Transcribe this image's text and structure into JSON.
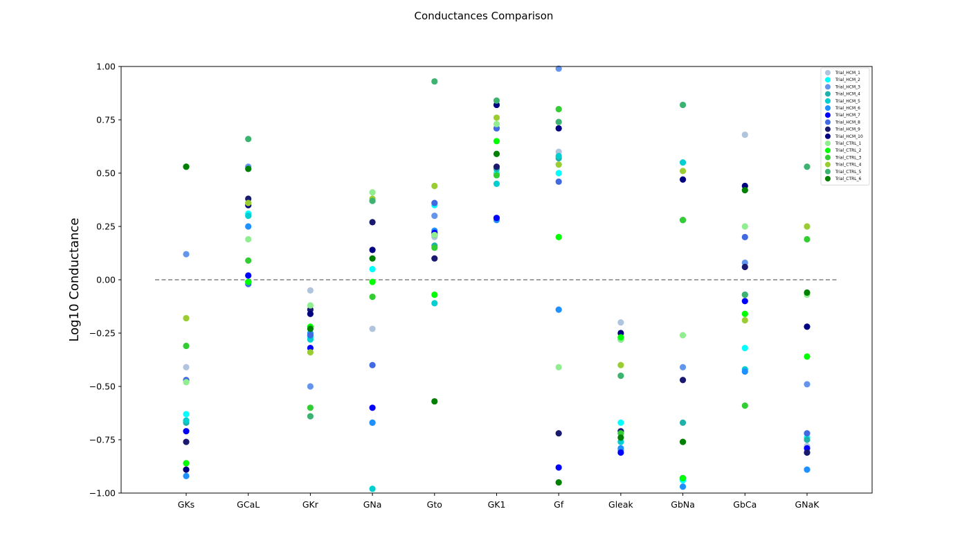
{
  "chart_data": {
    "type": "scatter",
    "title": "Conductances Comparison",
    "xlabel": "",
    "ylabel": "Log10 Conductance",
    "categories": [
      "GKs",
      "GCaL",
      "GKr",
      "GNa",
      "Gto",
      "GK1",
      "Gf",
      "Gleak",
      "GbNa",
      "GbCa",
      "GNaK"
    ],
    "ylim": [
      -1.0,
      1.0
    ],
    "yticks": [
      "−1.00",
      "−0.75",
      "−0.50",
      "−0.25",
      "0.00",
      "0.25",
      "0.50",
      "0.75",
      "1.00"
    ],
    "reference_line": {
      "y": 0.0,
      "style": "dashed",
      "color": "#808080"
    },
    "grid": false,
    "legend_position": "top-right",
    "series": [
      {
        "name": "Trial_HCM_1",
        "color": "#b0c4de",
        "values": [
          -0.41,
          0.36,
          -0.05,
          -0.23,
          0.2,
          0.52,
          0.6,
          -0.2,
          -0.76,
          0.68,
          -0.78
        ]
      },
      {
        "name": "Trial_HCM_2",
        "color": "#00ffff",
        "values": [
          -0.63,
          0.31,
          -0.27,
          0.05,
          0.35,
          0.5,
          0.5,
          -0.67,
          -0.94,
          -0.32,
          -0.74
        ]
      },
      {
        "name": "Trial_HCM_3",
        "color": "#6495ed",
        "values": [
          0.12,
          0.53,
          -0.5,
          -0.67,
          0.3,
          0.71,
          0.99,
          -0.8,
          -0.41,
          0.08,
          -0.49
        ]
      },
      {
        "name": "Trial_HCM_4",
        "color": "#20b2aa",
        "values": [
          -0.67,
          -0.01,
          -0.26,
          0.37,
          0.16,
          0.52,
          0.57,
          -0.28,
          -0.67,
          -0.07,
          -0.75
        ]
      },
      {
        "name": "Trial_HCM_5",
        "color": "#00ced1",
        "values": [
          -0.66,
          0.3,
          -0.28,
          -0.98,
          -0.11,
          0.45,
          0.58,
          -0.76,
          0.55,
          -0.42,
          -0.81
        ]
      },
      {
        "name": "Trial_HCM_6",
        "color": "#1e90ff",
        "values": [
          -0.92,
          0.25,
          -0.25,
          -0.67,
          0.23,
          0.28,
          -0.14,
          -0.79,
          -0.97,
          -0.43,
          -0.89
        ]
      },
      {
        "name": "Trial_HCM_7",
        "color": "#0000ff",
        "values": [
          -0.71,
          0.02,
          -0.32,
          -0.6,
          0.22,
          0.29,
          -0.88,
          -0.81,
          -0.93,
          -0.1,
          -0.79
        ]
      },
      {
        "name": "Trial_HCM_8",
        "color": "#4169e1",
        "values": [
          -0.47,
          -0.02,
          -0.26,
          -0.4,
          0.36,
          0.71,
          0.46,
          -0.28,
          0.28,
          0.2,
          -0.72
        ]
      },
      {
        "name": "Trial_HCM_9",
        "color": "#191970",
        "values": [
          -0.76,
          0.38,
          -0.14,
          0.27,
          0.1,
          0.53,
          -0.72,
          -0.71,
          -0.47,
          0.06,
          -0.81
        ]
      },
      {
        "name": "Trial_HCM_10",
        "color": "#000080",
        "values": [
          -0.89,
          0.35,
          -0.16,
          0.14,
          0.21,
          0.82,
          0.71,
          -0.25,
          0.47,
          0.44,
          -0.22
        ]
      },
      {
        "name": "Trial_CTRL_1",
        "color": "#90ee90",
        "values": [
          -0.48,
          0.19,
          -0.12,
          0.41,
          0.21,
          0.73,
          -0.41,
          -0.28,
          -0.26,
          0.25,
          -0.07
        ]
      },
      {
        "name": "Trial_CTRL_2",
        "color": "#00ff00",
        "values": [
          -0.86,
          -0.01,
          -0.22,
          -0.01,
          -0.07,
          0.65,
          0.2,
          -0.27,
          -0.93,
          -0.16,
          -0.36
        ]
      },
      {
        "name": "Trial_CTRL_3",
        "color": "#32cd32",
        "values": [
          -0.31,
          0.09,
          -0.6,
          -0.08,
          0.15,
          0.49,
          0.8,
          -0.72,
          0.28,
          -0.59,
          0.19
        ]
      },
      {
        "name": "Trial_CTRL_4",
        "color": "#9acd32",
        "values": [
          -0.18,
          0.36,
          -0.34,
          0.38,
          0.44,
          0.76,
          0.54,
          -0.4,
          0.51,
          -0.19,
          0.25
        ]
      },
      {
        "name": "Trial_CTRL_5",
        "color": "#3cb371",
        "values": [
          0.53,
          0.66,
          -0.64,
          0.37,
          0.93,
          0.84,
          0.74,
          -0.45,
          0.82,
          -0.07,
          0.53
        ]
      },
      {
        "name": "Trial_CTRL_6",
        "color": "#008000",
        "values": [
          0.53,
          0.52,
          -0.23,
          0.1,
          -0.57,
          0.59,
          -0.95,
          -0.74,
          -0.76,
          0.42,
          -0.06
        ]
      }
    ]
  }
}
